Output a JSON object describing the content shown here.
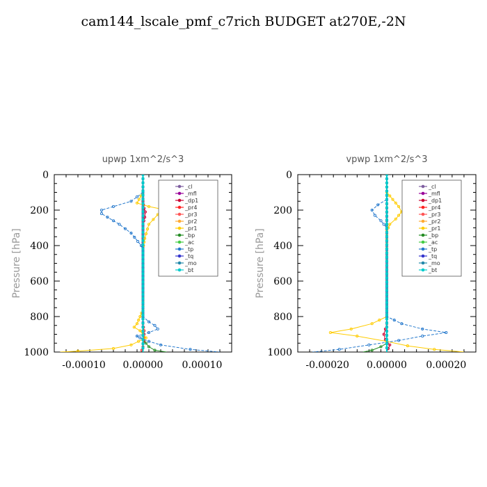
{
  "title": "cam144_lscale_pmf_c7rich  BUDGET at270E,-2N",
  "legend": [
    {
      "name": "_cl",
      "color": "#7f5fa0"
    },
    {
      "name": "_mfl",
      "color": "#990099"
    },
    {
      "name": "_dp1",
      "color": "#cc0033"
    },
    {
      "name": "_pr4",
      "color": "#ff2222"
    },
    {
      "name": "_pr3",
      "color": "#ff5555"
    },
    {
      "name": "_pr2",
      "color": "#ffaa33"
    },
    {
      "name": "_pr1",
      "color": "#ffcc00"
    },
    {
      "name": "_bp",
      "color": "#228b22"
    },
    {
      "name": "_ac",
      "color": "#44cc44"
    },
    {
      "name": "_tp",
      "color": "#2277cc"
    },
    {
      "name": "_tq",
      "color": "#3333cc"
    },
    {
      "name": "_mo",
      "color": "#2288aa"
    },
    {
      "name": "_bt",
      "color": "#00cccc"
    }
  ],
  "chart_data": [
    {
      "type": "line",
      "title": "upwp   1xm^2/s^3",
      "ylabel": "Pressure [hPa]",
      "xlim": [
        -0.00015,
        0.00015
      ],
      "ylim": [
        1000,
        0
      ],
      "xticks": [
        -0.0001,
        0.0,
        0.0001
      ],
      "xticklabels": [
        "-0.00010",
        "0.00000",
        "0.00010"
      ],
      "yticks": [
        0,
        200,
        400,
        600,
        800,
        1000
      ],
      "yticklabels": [
        "0",
        "200",
        "400",
        "600",
        "800",
        "1000"
      ],
      "legend_position": "top-right",
      "series": [
        {
          "name": "_cl",
          "points": [
            [
              0,
              0
            ],
            [
              0,
              200
            ],
            [
              0,
              600
            ],
            [
              0,
              1000
            ]
          ]
        },
        {
          "name": "_mfl",
          "points": [
            [
              0,
              0
            ],
            [
              0,
              500
            ],
            [
              0,
              1000
            ]
          ]
        },
        {
          "name": "_dp1",
          "points": [
            [
              0,
              150
            ],
            [
              2e-06,
              190
            ],
            [
              4e-06,
              210
            ],
            [
              3e-06,
              240
            ],
            [
              0,
              280
            ]
          ]
        },
        {
          "name": "_pr4",
          "points": [
            [
              0,
              840
            ],
            [
              2e-06,
              880
            ],
            [
              2e-06,
              940
            ],
            [
              0,
              970
            ],
            [
              -2e-06,
              990
            ],
            [
              0,
              1000
            ]
          ]
        },
        {
          "name": "_pr3",
          "points": [
            [
              0,
              0
            ],
            [
              0,
              1000
            ]
          ]
        },
        {
          "name": "_pr2",
          "points": [
            [
              0,
              0
            ],
            [
              0,
              1000
            ]
          ]
        },
        {
          "name": "_pr1",
          "points": [
            [
              0,
              100
            ],
            [
              -1e-05,
              160
            ],
            [
              1e-05,
              180
            ],
            [
              4e-05,
              200
            ],
            [
              2.5e-05,
              225
            ],
            [
              1e-05,
              280
            ],
            [
              3e-06,
              360
            ],
            [
              0,
              420
            ],
            [
              0,
              760
            ],
            [
              -5e-06,
              800
            ],
            [
              -1e-05,
              840
            ],
            [
              -1.5e-05,
              860
            ],
            [
              -5e-06,
              880
            ],
            [
              5e-06,
              920
            ],
            [
              -2e-05,
              960
            ],
            [
              -5e-05,
              980
            ],
            [
              -0.00011,
              995
            ],
            [
              -0.00014,
              1000
            ]
          ]
        },
        {
          "name": "_bp",
          "points": [
            [
              0,
              930
            ],
            [
              5e-06,
              950
            ],
            [
              1e-05,
              970
            ],
            [
              2e-05,
              990
            ],
            [
              4e-05,
              1000
            ]
          ]
        },
        {
          "name": "_ac",
          "points": [
            [
              0,
              0
            ],
            [
              0,
              1000
            ]
          ]
        },
        {
          "name": "_tp",
          "points": [
            [
              0,
              100
            ],
            [
              -2e-05,
              150
            ],
            [
              -5e-05,
              180
            ],
            [
              -7e-05,
              200
            ],
            [
              -7e-05,
              220
            ],
            [
              -6e-05,
              240
            ],
            [
              -4e-05,
              280
            ],
            [
              -2e-05,
              330
            ],
            [
              -3e-06,
              400
            ],
            [
              0,
              430
            ],
            [
              0,
              800
            ],
            [
              1e-05,
              830
            ],
            [
              2e-05,
              850
            ],
            [
              2.5e-05,
              870
            ],
            [
              1e-05,
              890
            ],
            [
              -1e-05,
              910
            ],
            [
              -5e-06,
              920
            ],
            [
              1e-05,
              940
            ],
            [
              3e-05,
              960
            ],
            [
              8e-05,
              985
            ],
            [
              0.00013,
              1000
            ]
          ]
        },
        {
          "name": "_tq",
          "points": [
            [
              0,
              0
            ],
            [
              0,
              1000
            ]
          ]
        },
        {
          "name": "_mo",
          "points": [
            [
              0,
              0
            ],
            [
              0,
              1000
            ]
          ]
        },
        {
          "name": "_bt",
          "points": [
            [
              0,
              0
            ],
            [
              0,
              1000
            ]
          ]
        }
      ]
    },
    {
      "type": "line",
      "title": "vpwp   1xm^2/s^3",
      "ylabel": "Pressure [hPa]",
      "xlim": [
        -0.0003,
        0.0003
      ],
      "ylim": [
        1000,
        0
      ],
      "xticks": [
        -0.0002,
        0.0,
        0.0002
      ],
      "xticklabels": [
        "-0.00020",
        "0.00000",
        "0.00020"
      ],
      "yticks": [
        0,
        200,
        400,
        600,
        800,
        1000
      ],
      "yticklabels": [
        "0",
        "200",
        "400",
        "600",
        "800",
        "1000"
      ],
      "legend_position": "top-right",
      "series": [
        {
          "name": "_cl",
          "points": [
            [
              0,
              0
            ],
            [
              0,
              500
            ],
            [
              0,
              1000
            ]
          ]
        },
        {
          "name": "_mfl",
          "points": [
            [
              0,
              0
            ],
            [
              0,
              1000
            ]
          ]
        },
        {
          "name": "_dp1",
          "points": [
            [
              0,
              840
            ],
            [
              -5e-06,
              870
            ],
            [
              -1e-05,
              900
            ],
            [
              -5e-06,
              930
            ],
            [
              1e-05,
              960
            ],
            [
              0,
              1000
            ]
          ]
        },
        {
          "name": "_pr4",
          "points": [
            [
              0,
              0
            ],
            [
              0,
              1000
            ]
          ]
        },
        {
          "name": "_pr3",
          "points": [
            [
              0,
              0
            ],
            [
              0,
              1000
            ]
          ]
        },
        {
          "name": "_pr2",
          "points": [
            [
              0,
              0
            ],
            [
              0,
              1000
            ]
          ]
        },
        {
          "name": "_pr1",
          "points": [
            [
              0,
              100
            ],
            [
              2e-05,
              140
            ],
            [
              4e-05,
              180
            ],
            [
              5e-05,
              210
            ],
            [
              3e-05,
              250
            ],
            [
              1e-05,
              280
            ],
            [
              0,
              320
            ],
            [
              0,
              800
            ],
            [
              -5e-05,
              840
            ],
            [
              -0.00012,
              870
            ],
            [
              -0.00019,
              890
            ],
            [
              -0.0001,
              910
            ],
            [
              0,
              940
            ],
            [
              7e-05,
              965
            ],
            [
              0.00016,
              985
            ],
            [
              0.00026,
              1000
            ]
          ]
        },
        {
          "name": "_bp",
          "points": [
            [
              0,
              950
            ],
            [
              -2e-05,
              970
            ],
            [
              -5e-05,
              990
            ],
            [
              -8e-05,
              1000
            ]
          ]
        },
        {
          "name": "_ac",
          "points": [
            [
              0,
              0
            ],
            [
              0,
              1000
            ]
          ]
        },
        {
          "name": "_tp",
          "points": [
            [
              0,
              140
            ],
            [
              -3e-05,
              170
            ],
            [
              -5e-05,
              200
            ],
            [
              -4e-05,
              230
            ],
            [
              -2e-05,
              260
            ],
            [
              0,
              300
            ],
            [
              0,
              800
            ],
            [
              5e-05,
              840
            ],
            [
              0.00012,
              870
            ],
            [
              0.0002,
              890
            ],
            [
              0.00012,
              910
            ],
            [
              4e-05,
              935
            ],
            [
              -6e-05,
              960
            ],
            [
              -0.00016,
              985
            ],
            [
              -0.00025,
              1000
            ]
          ]
        },
        {
          "name": "_tq",
          "points": [
            [
              0,
              0
            ],
            [
              0,
              1000
            ]
          ]
        },
        {
          "name": "_mo",
          "points": [
            [
              0,
              0
            ],
            [
              0,
              1000
            ]
          ]
        },
        {
          "name": "_bt",
          "points": [
            [
              0,
              0
            ],
            [
              0,
              1000
            ]
          ]
        }
      ]
    }
  ]
}
